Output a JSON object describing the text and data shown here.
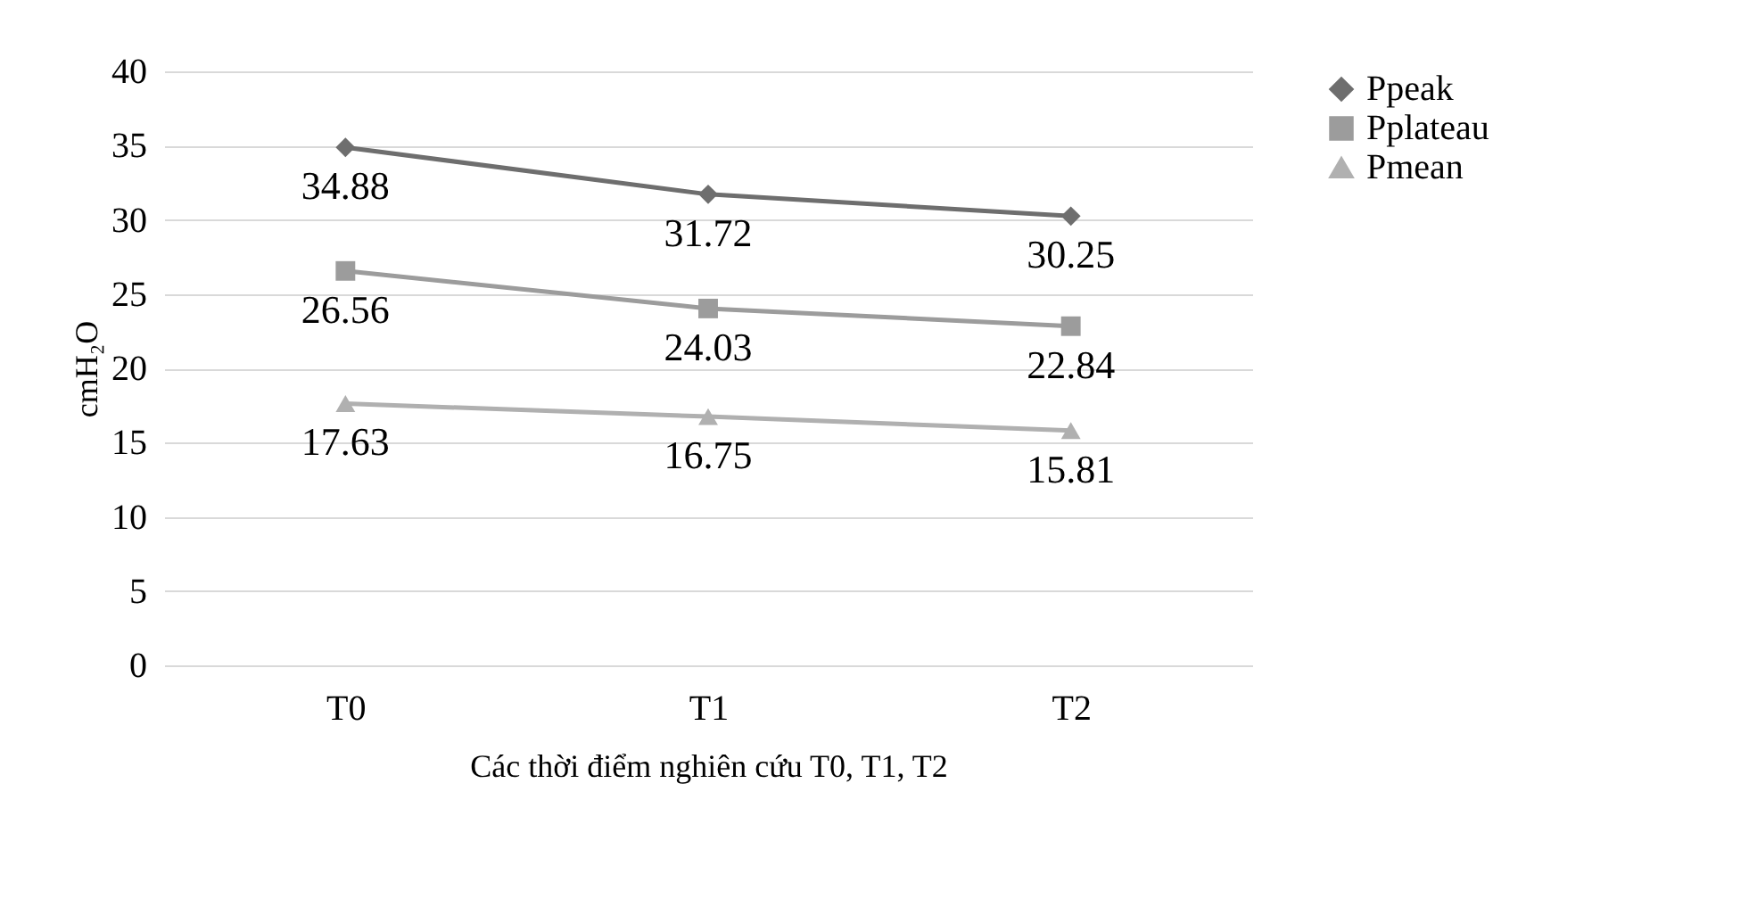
{
  "chart_data": {
    "type": "line",
    "xlabel": "Các thời điểm nghiên  cứu T0, T1, T2",
    "ylabel": "cmH₂O",
    "categories": [
      "T0",
      "T1",
      "T2"
    ],
    "series": [
      {
        "name": "Ppeak",
        "color": "#6e6e6e",
        "marker": "diamond",
        "values": [
          34.88,
          31.72,
          30.25
        ]
      },
      {
        "name": "Pplateau",
        "color": "#9c9c9c",
        "marker": "square",
        "values": [
          26.56,
          24.03,
          22.84
        ]
      },
      {
        "name": "Pmean",
        "color": "#b0b0b0",
        "marker": "triangle",
        "values": [
          17.63,
          16.75,
          15.81
        ]
      }
    ],
    "ylim": [
      0,
      40
    ],
    "yticks": [
      0,
      5,
      10,
      15,
      20,
      25,
      30,
      35,
      40
    ],
    "grid": "y",
    "legend": "right",
    "data_labels": true,
    "line_style": "solid"
  }
}
